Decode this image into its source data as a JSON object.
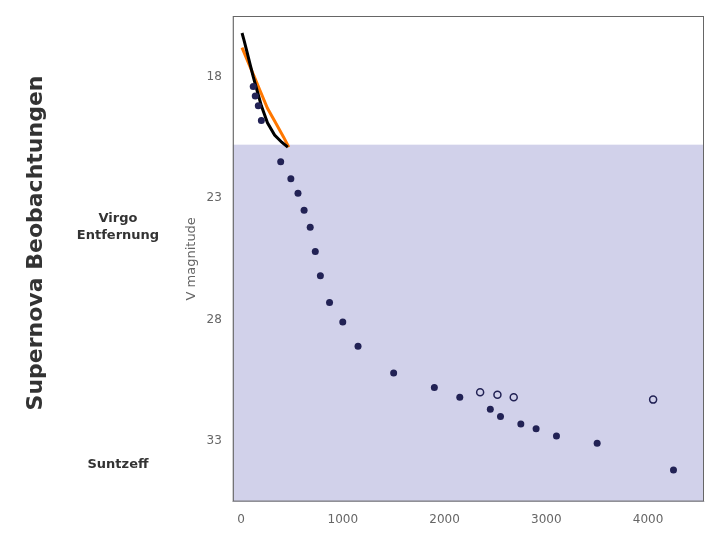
{
  "chart_data": {
    "type": "scatter",
    "title": "Supernova Beobachtungen",
    "ylabel": "V magnitude",
    "annotations": [
      "Virgo\nEntfernung",
      "Suntzeff"
    ],
    "xlim": [
      -80,
      4550
    ],
    "ylim": [
      35.5,
      15.5
    ],
    "xticks": [
      0,
      1000,
      2000,
      3000,
      4000
    ],
    "yticks": [
      18,
      23,
      28,
      33
    ],
    "grid": false,
    "boundary": {
      "value": 20.8,
      "color": "#6666bb"
    },
    "series": [
      {
        "type": "line",
        "color": "#000000",
        "line_style": "solid",
        "x": [
          10,
          30,
          60,
          90,
          120,
          160,
          200,
          260,
          330,
          400,
          460
        ],
        "values": [
          16.2,
          16.5,
          17.0,
          17.5,
          18.0,
          18.6,
          19.2,
          19.9,
          20.4,
          20.7,
          20.9
        ]
      },
      {
        "type": "line",
        "color": "#ff7700",
        "line_style": "solid",
        "x": [
          10,
          40,
          80,
          130,
          190,
          260,
          340,
          420,
          470
        ],
        "values": [
          16.8,
          17.1,
          17.5,
          18.0,
          18.6,
          19.3,
          19.9,
          20.5,
          20.9
        ]
      },
      {
        "type": "scatter",
        "color": "#222255",
        "marker": "circle",
        "x": [
          120,
          140,
          170,
          200,
          390,
          490,
          560,
          620,
          680,
          730,
          780,
          870,
          1000,
          1150,
          1500,
          1900,
          2150,
          2450,
          2550,
          2750,
          2900,
          3100,
          3500,
          4250
        ],
        "values": [
          18.4,
          18.8,
          19.2,
          19.8,
          21.5,
          22.2,
          22.8,
          23.5,
          24.2,
          25.2,
          26.2,
          27.3,
          28.1,
          29.1,
          30.2,
          30.8,
          31.2,
          31.7,
          32.0,
          32.3,
          32.5,
          32.8,
          33.1,
          34.2
        ]
      },
      {
        "type": "scatter",
        "color": "#222255",
        "marker": "open_circle",
        "x": [
          2350,
          2520,
          2680,
          4050
        ],
        "values": [
          31.0,
          31.1,
          31.2,
          31.3
        ]
      }
    ]
  }
}
